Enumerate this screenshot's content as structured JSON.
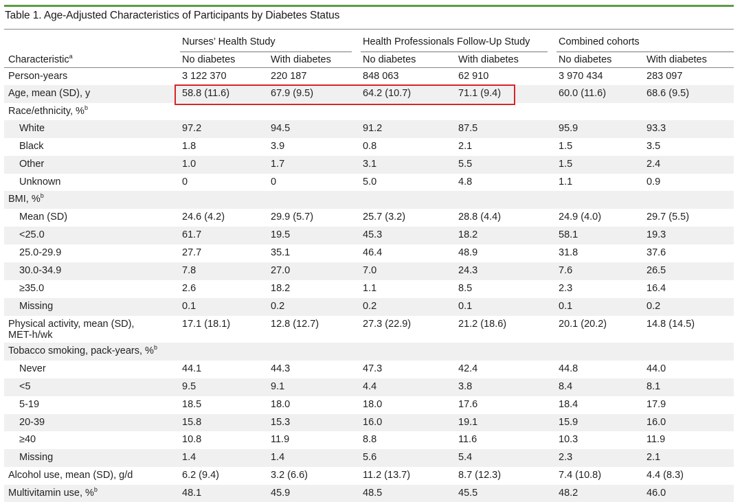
{
  "title": "Table 1. Age-Adjusted Characteristics of Participants by Diabetes Status",
  "groups": {
    "nhs": "Nurses’ Health Study",
    "hpfs": "Health Professionals Follow-Up Study",
    "combined": "Combined cohorts"
  },
  "header": {
    "characteristic": "Characteristic",
    "characteristic_sup": "a",
    "no_diabetes": "No diabetes",
    "with_diabetes": "With diabetes"
  },
  "rows": [
    {
      "label": "Person-years",
      "values": [
        "3 122 370",
        "220 187",
        "848 063",
        "62 910",
        "3 970 434",
        "283 097"
      ]
    },
    {
      "label": "Age, mean (SD), y",
      "values": [
        "58.8 (11.6)",
        "67.9 (9.5)",
        "64.2 (10.7)",
        "71.1 (9.4)",
        "60.0 (11.6)",
        "68.6 (9.5)"
      ]
    },
    {
      "label": "Race/ethnicity, %",
      "sup": "b",
      "values": [
        "",
        "",
        "",
        "",
        "",
        ""
      ]
    },
    {
      "label": "White",
      "indent": true,
      "values": [
        "97.2",
        "94.5",
        "91.2",
        "87.5",
        "95.9",
        "93.3"
      ]
    },
    {
      "label": "Black",
      "indent": true,
      "values": [
        "1.8",
        "3.9",
        "0.8",
        "2.1",
        "1.5",
        "3.5"
      ]
    },
    {
      "label": "Other",
      "indent": true,
      "values": [
        "1.0",
        "1.7",
        "3.1",
        "5.5",
        "1.5",
        "2.4"
      ]
    },
    {
      "label": "Unknown",
      "indent": true,
      "values": [
        "0",
        "0",
        "5.0",
        "4.8",
        "1.1",
        "0.9"
      ]
    },
    {
      "label": "BMI, %",
      "sup": "b",
      "values": [
        "",
        "",
        "",
        "",
        "",
        ""
      ]
    },
    {
      "label": "Mean (SD)",
      "indent": true,
      "values": [
        "24.6 (4.2)",
        "29.9 (5.7)",
        "25.7 (3.2)",
        "28.8 (4.4)",
        "24.9 (4.0)",
        "29.7 (5.5)"
      ]
    },
    {
      "label": "<25.0",
      "indent": true,
      "values": [
        "61.7",
        "19.5",
        "45.3",
        "18.2",
        "58.1",
        "19.3"
      ]
    },
    {
      "label": "25.0-29.9",
      "indent": true,
      "values": [
        "27.7",
        "35.1",
        "46.4",
        "48.9",
        "31.8",
        "37.6"
      ]
    },
    {
      "label": "30.0-34.9",
      "indent": true,
      "values": [
        "7.8",
        "27.0",
        "7.0",
        "24.3",
        "7.6",
        "26.5"
      ]
    },
    {
      "label": "≥35.0",
      "indent": true,
      "values": [
        "2.6",
        "18.2",
        "1.1",
        "8.5",
        "2.3",
        "16.4"
      ]
    },
    {
      "label": "Missing",
      "indent": true,
      "values": [
        "0.1",
        "0.2",
        "0.2",
        "0.1",
        "0.1",
        "0.2"
      ]
    },
    {
      "label": "Physical activity, mean (SD),",
      "label2": "MET-h/wk",
      "values": [
        "17.1 (18.1)",
        "12.8 (12.7)",
        "27.3 (22.9)",
        "21.2 (18.6)",
        "20.1 (20.2)",
        "14.8 (14.5)"
      ]
    },
    {
      "label": "Tobacco smoking, pack-years, %",
      "sup": "b",
      "values": [
        "",
        "",
        "",
        "",
        "",
        ""
      ]
    },
    {
      "label": "Never",
      "indent": true,
      "values": [
        "44.1",
        "44.3",
        "47.3",
        "42.4",
        "44.8",
        "44.0"
      ]
    },
    {
      "label": "<5",
      "indent": true,
      "values": [
        "9.5",
        "9.1",
        "4.4",
        "3.8",
        "8.4",
        "8.1"
      ]
    },
    {
      "label": "5-19",
      "indent": true,
      "values": [
        "18.5",
        "18.0",
        "18.0",
        "17.6",
        "18.4",
        "17.9"
      ]
    },
    {
      "label": "20-39",
      "indent": true,
      "values": [
        "15.8",
        "15.3",
        "16.0",
        "19.1",
        "15.9",
        "16.0"
      ]
    },
    {
      "label": "≥40",
      "indent": true,
      "values": [
        "10.8",
        "11.9",
        "8.8",
        "11.6",
        "10.3",
        "11.9"
      ]
    },
    {
      "label": "Missing",
      "indent": true,
      "values": [
        "1.4",
        "1.4",
        "5.6",
        "5.4",
        "2.3",
        "2.1"
      ]
    },
    {
      "label": "Alcohol use, mean (SD), g/d",
      "values": [
        "6.2 (9.4)",
        "3.2 (6.6)",
        "11.2 (13.7)",
        "8.7 (12.3)",
        "7.4 (10.8)",
        "4.4 (8.3)"
      ]
    },
    {
      "label": "Multivitamin use, %",
      "sup": "b",
      "values": [
        "48.1",
        "45.9",
        "48.5",
        "45.5",
        "48.2",
        "46.0"
      ]
    }
  ],
  "colors": {
    "accent_line": "#5d9a45",
    "highlight_box": "#d62424",
    "row_shade": "#f0f0f0"
  }
}
